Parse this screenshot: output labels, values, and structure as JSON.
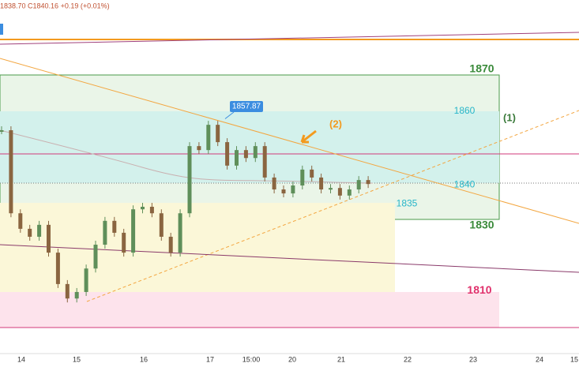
{
  "header": {
    "ohlc": "1838.70  C1840.16  +0.19 (+0.01%)"
  },
  "levels": [
    1870,
    1860,
    1840,
    1835,
    1830,
    1810
  ],
  "peak_label": 1857.87,
  "wave_labels": [
    "(1)",
    "(2)"
  ],
  "x_labels": [
    "14",
    "15",
    "16",
    "17",
    "15:00",
    "20",
    "21",
    "22",
    "23",
    "24",
    "15"
  ],
  "candles": {
    "up_color": "#5f8f5a",
    "down_color": "#8a6540",
    "closes": [
      1854.7,
      1831.7,
      1827.4,
      1825.2,
      1828.5,
      1820.8,
      1812.1,
      1808.1,
      1809.9,
      1816.4,
      1823.0,
      1829.6,
      1826.3,
      1820.8,
      1832.8,
      1833.5,
      1831.7,
      1825.2,
      1820.8,
      1831.7,
      1850.3,
      1849.2,
      1856.2,
      1851.4,
      1844.9,
      1849.2,
      1847.0,
      1850.3,
      1841.6,
      1838.3,
      1837.2,
      1839.4,
      1843.8,
      1841.6,
      1838.3,
      1838.7,
      1836.6,
      1838.3,
      1840.9,
      1839.8
    ]
  }
}
